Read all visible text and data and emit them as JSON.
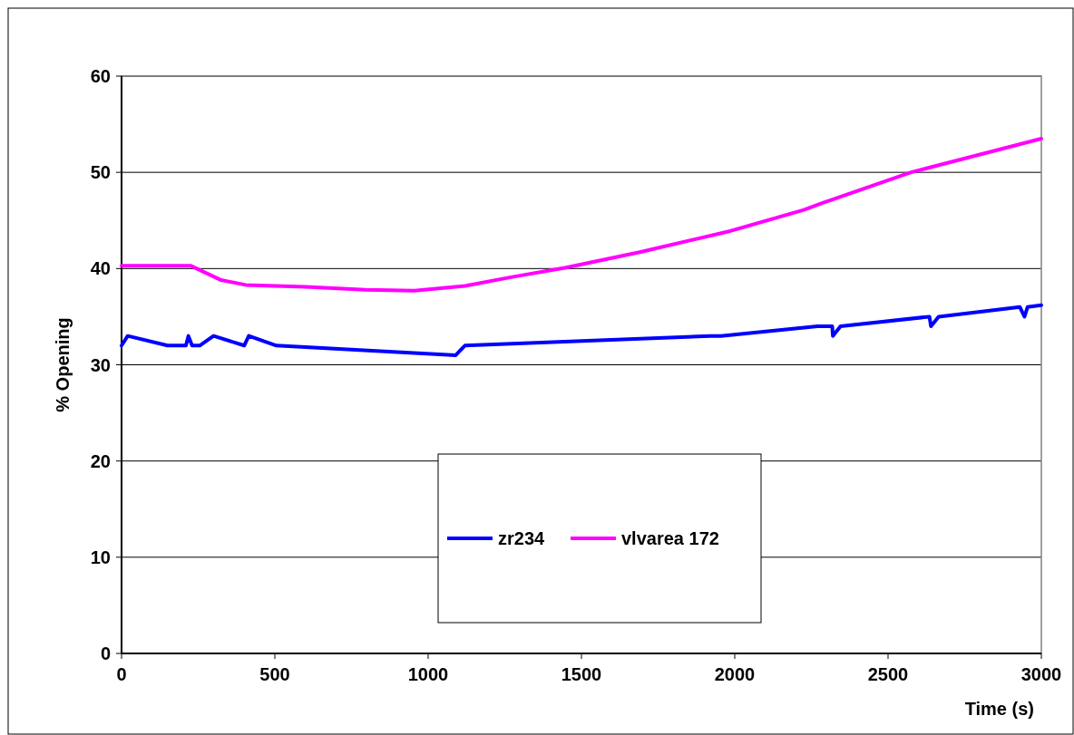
{
  "chart_data": {
    "type": "line",
    "xlabel": "Time (s)",
    "ylabel": "% Opening",
    "xlim": [
      0,
      3000
    ],
    "xticks": [
      0,
      500,
      1000,
      1500,
      2000,
      2500,
      3000
    ],
    "ylim": [
      0,
      60
    ],
    "yticks": [
      0,
      10,
      20,
      30,
      40,
      50,
      60
    ],
    "grid": "y",
    "legend": "bottom",
    "marker": "none",
    "line_style": "solid",
    "series": [
      {
        "name": "zr234",
        "color": "#0000ff",
        "x": [
          0,
          20,
          150,
          210,
          218,
          230,
          255,
          300,
          400,
          415,
          505,
          1090,
          1120,
          1920,
          1955,
          2270,
          2318,
          2320,
          2345,
          2635,
          2640,
          2665,
          2930,
          2945,
          2955,
          3000
        ],
        "values": [
          32,
          33,
          32,
          32,
          33,
          32,
          32,
          33,
          32,
          33,
          32,
          31,
          32,
          33,
          33,
          34,
          34,
          33,
          34,
          35,
          34,
          35,
          36,
          35,
          36,
          36.2
        ]
      },
      {
        "name": "vlvarea 172",
        "color": "#ff00ff",
        "x": [
          0,
          225,
          325,
          405,
          600,
          795,
          955,
          1120,
          1270,
          1450,
          1690,
          1985,
          2225,
          2285,
          2575,
          3000
        ],
        "values": [
          40.3,
          40.3,
          38.8,
          38.3,
          38.1,
          37.8,
          37.7,
          38.2,
          39.1,
          40.1,
          41.7,
          43.9,
          46.1,
          46.8,
          50,
          53.5
        ]
      }
    ]
  }
}
